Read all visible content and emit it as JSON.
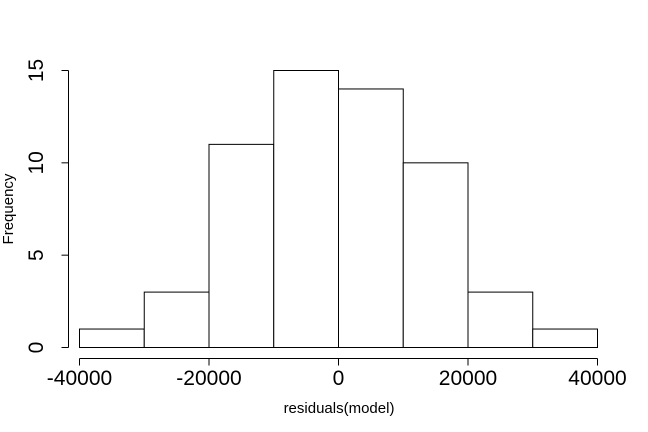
{
  "chart_data": {
    "type": "histogram",
    "title": "",
    "xlabel": "residuals(model)",
    "ylabel": "Frequency",
    "bin_edges": [
      -40000,
      -30000,
      -20000,
      -10000,
      0,
      10000,
      20000,
      30000,
      40000
    ],
    "counts": [
      1,
      3,
      11,
      15,
      14,
      10,
      3,
      1
    ],
    "xlim": [
      -40000,
      40000
    ],
    "ylim": [
      0,
      15
    ],
    "x_ticks": [
      -40000,
      -20000,
      0,
      20000,
      40000
    ],
    "x_tick_labels": [
      "-40000",
      "-20000",
      "0",
      "20000",
      "40000"
    ],
    "y_ticks": [
      0,
      5,
      10,
      15
    ],
    "y_tick_labels": [
      "0",
      "5",
      "10",
      "15"
    ],
    "grid": false,
    "legend": "none"
  }
}
